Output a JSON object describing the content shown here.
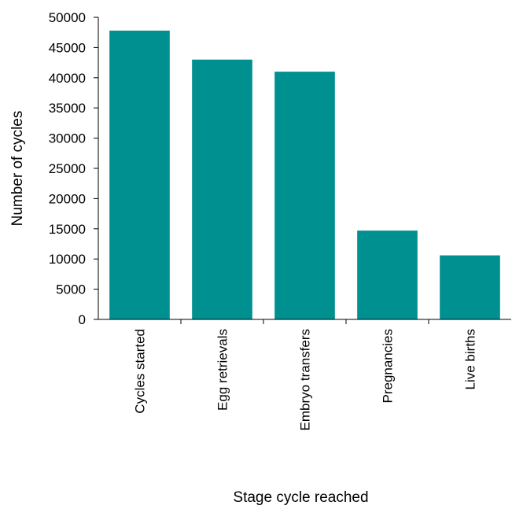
{
  "chart_data": {
    "type": "bar",
    "categories": [
      "Cycles started",
      "Egg retrievals",
      "Embryo transfers",
      "Pregnancies",
      "Live births"
    ],
    "values": [
      47800,
      43000,
      41000,
      14700,
      10600
    ],
    "title": "",
    "xlabel": "Stage cycle reached",
    "ylabel": "Number of cycles",
    "ylim": [
      0,
      50000
    ],
    "yticks": [
      0,
      5000,
      10000,
      15000,
      20000,
      25000,
      30000,
      35000,
      40000,
      45000,
      50000
    ],
    "bar_color": "#009090",
    "grid": false,
    "legend": "none"
  }
}
